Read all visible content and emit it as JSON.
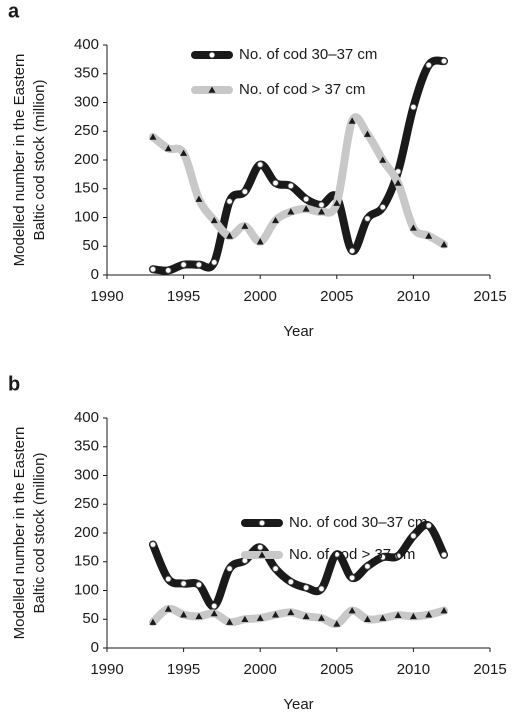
{
  "chart_data": [
    {
      "type": "line",
      "label": "a",
      "ylabel": [
        "Modelled number in the Eastern",
        "Baltic cod stock (million)"
      ],
      "xlabel": "Year",
      "x": [
        1993,
        1994,
        1995,
        1996,
        1997,
        1998,
        1999,
        2000,
        2001,
        2002,
        2003,
        2004,
        2005,
        2006,
        2007,
        2008,
        2009,
        2010,
        2011,
        2012
      ],
      "xlim": [
        1990,
        2015
      ],
      "xticks": [
        1990,
        1995,
        2000,
        2005,
        2010,
        2015
      ],
      "ylim": [
        0,
        400
      ],
      "yticks": [
        0,
        50,
        100,
        150,
        200,
        250,
        300,
        350,
        400
      ],
      "legend": "upper center",
      "series": [
        {
          "name": "No. of cod 30–37 cm",
          "color": "#1a1a1a",
          "marker": "circle",
          "values": [
            10,
            8,
            18,
            18,
            22,
            128,
            145,
            192,
            160,
            155,
            132,
            122,
            135,
            42,
            98,
            118,
            180,
            292,
            365,
            372
          ]
        },
        {
          "name": "No. of cod > 37 cm",
          "color": "#c8c8c8",
          "marker": "triangle",
          "values": [
            240,
            220,
            212,
            132,
            95,
            68,
            85,
            58,
            95,
            110,
            115,
            110,
            125,
            268,
            245,
            200,
            160,
            82,
            68,
            53
          ]
        }
      ]
    },
    {
      "type": "line",
      "label": "b",
      "ylabel": [
        "Modelled number in the Eastern",
        "Baltic cod stock (million)"
      ],
      "xlabel": "Year",
      "x": [
        1993,
        1994,
        1995,
        1996,
        1997,
        1998,
        1999,
        2000,
        2001,
        2002,
        2003,
        2004,
        2005,
        2006,
        2007,
        2008,
        2009,
        2010,
        2011,
        2012
      ],
      "xlim": [
        1990,
        2015
      ],
      "xticks": [
        1990,
        1995,
        2000,
        2005,
        2010,
        2015
      ],
      "ylim": [
        0,
        400
      ],
      "yticks": [
        0,
        50,
        100,
        150,
        200,
        250,
        300,
        350,
        400
      ],
      "legend": "center right",
      "series": [
        {
          "name": "No. of cod 30–37 cm",
          "color": "#1a1a1a",
          "marker": "circle",
          "values": [
            180,
            120,
            112,
            110,
            73,
            138,
            152,
            175,
            138,
            115,
            105,
            103,
            163,
            122,
            142,
            158,
            160,
            195,
            213,
            162
          ]
        },
        {
          "name": "No. of cod > 37 cm",
          "color": "#c8c8c8",
          "marker": "triangle",
          "values": [
            45,
            68,
            58,
            55,
            60,
            45,
            50,
            52,
            58,
            62,
            55,
            52,
            42,
            65,
            50,
            52,
            57,
            55,
            58,
            65
          ]
        }
      ]
    }
  ]
}
